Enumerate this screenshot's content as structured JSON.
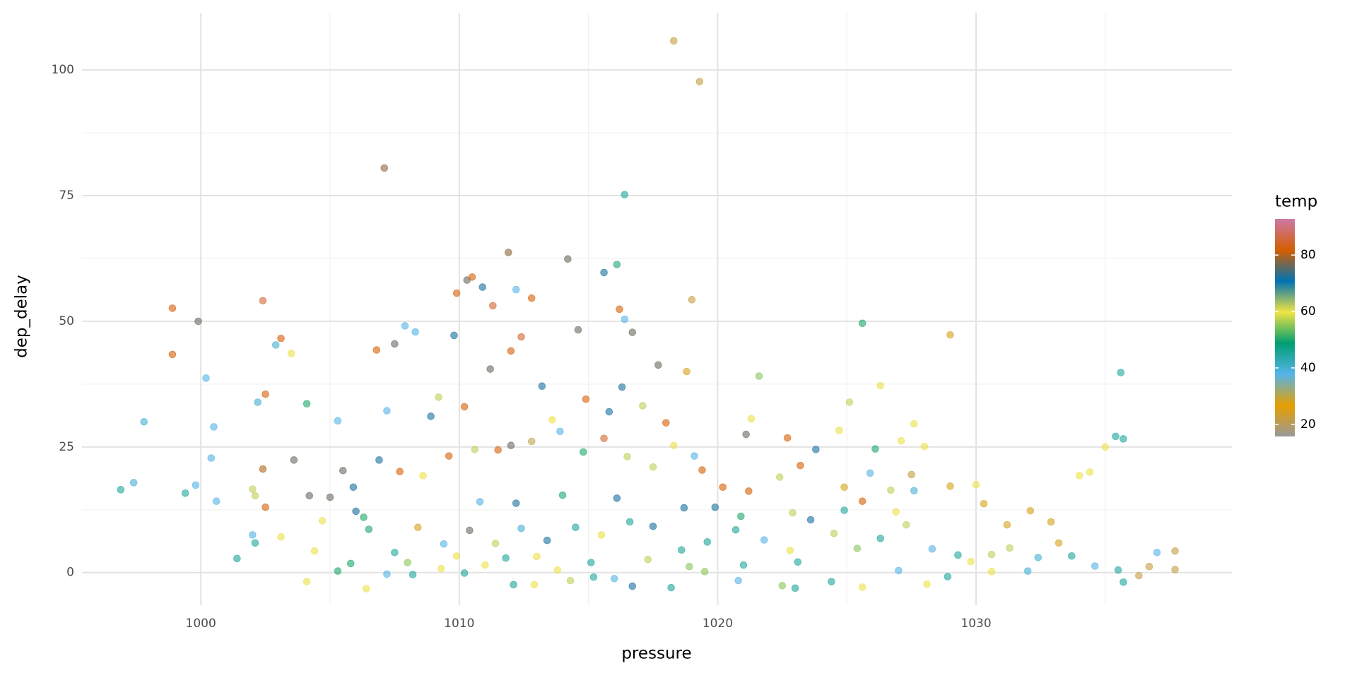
{
  "chart_data": {
    "type": "scatter",
    "x_label": "pressure",
    "y_label": "dep_delay",
    "color_label": "temp",
    "xlim": [
      995.4,
      1039.9
    ],
    "ylim": [
      -6.5,
      111.4
    ],
    "xticks": [
      1000,
      1010,
      1020,
      1030
    ],
    "yticks": [
      0,
      25,
      50,
      75,
      100
    ],
    "grid": true,
    "colorlim": [
      15.7,
      92.8
    ],
    "colorticks": [
      20,
      40,
      60,
      80
    ],
    "colors": [
      "#999999",
      "#E69F00",
      "#56B4E9",
      "#009E73",
      "#F0E442",
      "#0072B2",
      "#D55E00",
      "#CC79A7"
    ],
    "opacity": 0.6,
    "x": [
      1018.3,
      1019.3,
      1007.1,
      1016.4,
      1011.9,
      1014.2,
      1016.1,
      1015.6,
      1010.3,
      1010.5,
      1010.9,
      1012.2,
      1009.9,
      1012.8,
      1019.0,
      1002.4,
      998.9,
      1011.3,
      1016.2,
      1016.4,
      999.9,
      1025.6,
      1007.9,
      1029.0,
      1003.1,
      1014.6,
      1008.3,
      1007.5,
      1002.9,
      998.9,
      1003.5,
      1012.0,
      1016.7,
      1009.8,
      1006.8,
      1035.6,
      1000.2,
      1026.3,
      1002.5,
      1004.1,
      1002.2,
      997.8,
      1000.5,
      1005.3,
      1013.2,
      1009.2,
      1017.7,
      1018.8,
      1021.6,
      1021.3,
      1025.1,
      1027.6,
      1035.0,
      1035.4,
      1035.7,
      1034.4,
      1034.0,
      1022.7,
      1021.1,
      1028.0,
      1026.1,
      1027.1,
      1000.4,
      1003.6,
      1002.4,
      997.4,
      996.9,
      999.4,
      999.8,
      1000.6,
      1002.0,
      1002.1,
      1002.5,
      1004.2,
      1005.0,
      1001.4,
      1002.0,
      1002.1,
      1003.1,
      1004.1,
      1004.4,
      1004.7,
      1005.3,
      1005.8,
      1006.4,
      1006.3,
      1007.2,
      1008.2,
      1009.3,
      1010.2,
      1011.0,
      1012.1,
      1012.9,
      1013.8,
      1014.3,
      1015.2,
      1016.0,
      1016.7,
      1018.2,
      1019.5,
      1020.8,
      1022.5,
      1023.0,
      1024.4,
      1025.6,
      1027.0,
      1028.1,
      1028.9,
      1029.8,
      1030.6,
      1031.3,
      1032.0,
      1032.4,
      1033.2,
      1033.7,
      1034.6,
      1035.5,
      1035.7,
      1036.3,
      1036.7,
      1037.0,
      1037.7,
      1037.7,
      1032.1,
      1032.9,
      1031.2,
      1030.3,
      1030.0,
      1029.0,
      1027.6,
      1027.5,
      1026.7,
      1025.9,
      1025.6,
      1024.9,
      1023.2,
      1022.4,
      1021.2,
      1020.2,
      1019.4,
      1018.3,
      1017.5,
      1016.5,
      1015.6,
      1014.8,
      1013.9,
      1012.8,
      1012.0,
      1011.5,
      1010.6,
      1009.6,
      1008.6,
      1007.7,
      1006.9,
      1005.9,
      1007.2,
      1008.9,
      1010.2,
      1011.2,
      1012.4,
      1013.6,
      1014.9,
      1015.8,
      1016.3,
      1017.1,
      1018.0,
      1019.1,
      1019.9,
      1020.7,
      1019.6,
      1018.6,
      1017.5,
      1016.6,
      1015.5,
      1014.5,
      1013.4,
      1012.4,
      1011.4,
      1010.4,
      1009.4,
      1008.4,
      1007.5,
      1006.5,
      1006.0,
      1005.5,
      1021.8,
      1022.8,
      1023.6,
      1024.5,
      1025.4,
      1026.3,
      1027.3,
      1028.3,
      1029.3,
      1030.6,
      1023.8,
      1024.7,
      1023.1,
      1021.0,
      1018.9,
      1017.3,
      1015.1,
      1013.0,
      1011.8,
      1009.9,
      1008.0,
      1016.1,
      1014.0,
      1012.2,
      1010.8,
      1018.7,
      1020.9,
      1022.9,
      1024.9,
      1026.9
    ],
    "y": [
      105.8,
      97.7,
      80.5,
      75.2,
      63.7,
      62.4,
      61.3,
      59.7,
      58.2,
      58.8,
      56.8,
      56.3,
      55.6,
      54.6,
      54.3,
      54.1,
      52.6,
      53.1,
      52.4,
      50.4,
      50.0,
      49.6,
      49.1,
      47.3,
      46.6,
      48.3,
      47.9,
      45.5,
      45.3,
      43.4,
      43.6,
      44.1,
      47.8,
      47.2,
      44.3,
      39.8,
      38.7,
      37.2,
      35.5,
      33.6,
      33.9,
      30.0,
      29.0,
      30.2,
      37.1,
      34.9,
      41.3,
      40.0,
      39.1,
      30.6,
      33.9,
      29.6,
      25.0,
      27.1,
      26.6,
      20.0,
      19.3,
      26.8,
      27.5,
      25.1,
      24.6,
      26.2,
      22.8,
      22.4,
      20.6,
      17.9,
      16.5,
      15.8,
      17.4,
      14.2,
      16.6,
      15.3,
      13.0,
      15.3,
      15.0,
      2.8,
      7.5,
      5.9,
      7.1,
      -1.8,
      4.3,
      10.3,
      0.3,
      1.8,
      -3.2,
      11.0,
      -0.3,
      -0.4,
      0.8,
      -0.1,
      1.5,
      -2.4,
      -2.4,
      0.5,
      -1.6,
      -0.9,
      -1.2,
      -2.7,
      -3.0,
      0.2,
      -1.6,
      -2.6,
      -3.1,
      -1.8,
      -2.9,
      0.4,
      -2.3,
      -0.8,
      2.2,
      0.2,
      4.9,
      0.3,
      3.0,
      5.9,
      3.3,
      1.3,
      0.5,
      -1.9,
      -0.6,
      1.2,
      4.0,
      4.3,
      0.6,
      12.3,
      10.1,
      9.5,
      13.7,
      17.5,
      17.2,
      16.3,
      19.5,
      16.4,
      19.8,
      14.2,
      17.0,
      21.3,
      19.0,
      16.2,
      17.0,
      20.4,
      25.3,
      21.0,
      23.1,
      26.7,
      24.0,
      28.1,
      26.1,
      25.3,
      24.4,
      24.5,
      23.2,
      19.3,
      20.1,
      22.4,
      17.0,
      32.2,
      31.1,
      33.0,
      40.5,
      46.9,
      30.4,
      34.5,
      32.0,
      36.9,
      33.2,
      29.8,
      23.2,
      13.0,
      8.5,
      6.1,
      4.5,
      9.2,
      10.1,
      7.5,
      9.0,
      6.4,
      8.8,
      5.8,
      8.4,
      5.7,
      9.0,
      4.0,
      8.6,
      12.2,
      20.3,
      6.5,
      4.4,
      10.5,
      7.8,
      4.8,
      6.8,
      9.5,
      4.7,
      3.5,
      3.6,
      24.5,
      28.3,
      2.1,
      1.5,
      1.2,
      2.6,
      2.0,
      3.2,
      2.9,
      3.3,
      2.0,
      14.8,
      15.4,
      13.8,
      14.1,
      12.9,
      11.2,
      11.9,
      12.4,
      12.1
    ],
    "temp": [
      22,
      22,
      78,
      45,
      78,
      76,
      50,
      72,
      76,
      82,
      72,
      38,
      82,
      82,
      22,
      85,
      82,
      85,
      82,
      38,
      76,
      50,
      38,
      28,
      82,
      76,
      38,
      76,
      40,
      82,
      60,
      82,
      76,
      72,
      82,
      45,
      38,
      60,
      82,
      50,
      40,
      40,
      38,
      38,
      72,
      62,
      76,
      28,
      55,
      60,
      62,
      60,
      60,
      45,
      45,
      60,
      60,
      82,
      76,
      60,
      50,
      60,
      38,
      76,
      80,
      40,
      45,
      45,
      38,
      38,
      62,
      62,
      82,
      76,
      76,
      45,
      38,
      45,
      60,
      60,
      60,
      60,
      50,
      50,
      60,
      50,
      38,
      45,
      60,
      45,
      60,
      45,
      60,
      60,
      62,
      45,
      38,
      72,
      45,
      55,
      38,
      55,
      45,
      45,
      60,
      38,
      60,
      45,
      60,
      60,
      62,
      40,
      40,
      28,
      45,
      38,
      45,
      45,
      22,
      22,
      38,
      22,
      22,
      28,
      28,
      28,
      28,
      60,
      28,
      40,
      22,
      62,
      38,
      82,
      28,
      82,
      62,
      82,
      82,
      82,
      60,
      62,
      62,
      85,
      50,
      38,
      30,
      76,
      82,
      62,
      82,
      60,
      82,
      72,
      72,
      38,
      72,
      82,
      76,
      85,
      60,
      82,
      72,
      72,
      62,
      82,
      38,
      72,
      45,
      45,
      45,
      72,
      45,
      60,
      45,
      72,
      40,
      62,
      76,
      38,
      28,
      45,
      50,
      72,
      76,
      38,
      60,
      72,
      62,
      55,
      45,
      62,
      38,
      45,
      62,
      72,
      60,
      45,
      45,
      55,
      62,
      45,
      60,
      45,
      60,
      55,
      72,
      50,
      72,
      38,
      72,
      50,
      62,
      45,
      60
    ]
  }
}
